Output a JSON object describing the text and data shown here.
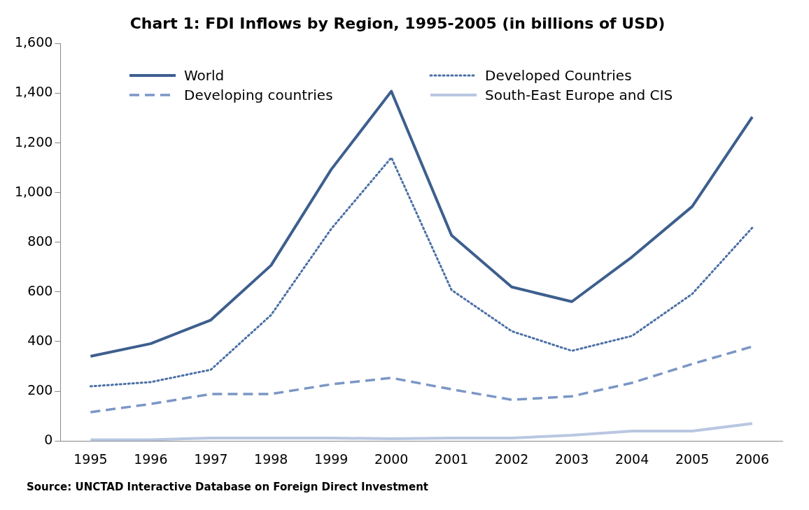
{
  "chart_data": {
    "type": "line",
    "title": "Chart 1: FDI Inflows by Region, 1995-2005 (in billions of USD)",
    "categories": [
      "1995",
      "1996",
      "1997",
      "1998",
      "1999",
      "2000",
      "2001",
      "2002",
      "2003",
      "2004",
      "2005",
      "2006"
    ],
    "series": [
      {
        "name": "World",
        "color": "#3d5f8e",
        "line_style": "solid",
        "values": [
          341,
          392,
          487,
          707,
          1093,
          1408,
          828,
          620,
          561,
          741,
          944,
          1305
        ]
      },
      {
        "name": "Developed Countries",
        "color": "#4a6fa5",
        "line_style": "dotted",
        "values": [
          220,
          237,
          287,
          507,
          854,
          1141,
          608,
          442,
          363,
          423,
          592,
          859
        ]
      },
      {
        "name": "Developing countries",
        "color": "#7b96c6",
        "line_style": "dashed",
        "values": [
          116,
          149,
          189,
          189,
          228,
          254,
          208,
          166,
          180,
          234,
          310,
          380
        ]
      },
      {
        "name": "South-East Europe and CIS",
        "color": "#b9c7e1",
        "line_style": "solid",
        "values": [
          5,
          5,
          12,
          12,
          12,
          9,
          12,
          12,
          23,
          40,
          40,
          70
        ]
      }
    ],
    "ylim": [
      0,
      1600
    ],
    "yticks": [
      0,
      200,
      400,
      600,
      800,
      {
        "value": 1000,
        "label": "1,000"
      },
      {
        "value": 1200,
        "label": "1,200"
      },
      {
        "value": 1400,
        "label": "1,400"
      },
      {
        "value": 1600,
        "label": "1,600"
      }
    ],
    "grid": false,
    "legend": "top",
    "marker": "none",
    "annotations": [
      "Source: UNCTAD Interactive Database on Foreign Direct Investment"
    ]
  }
}
